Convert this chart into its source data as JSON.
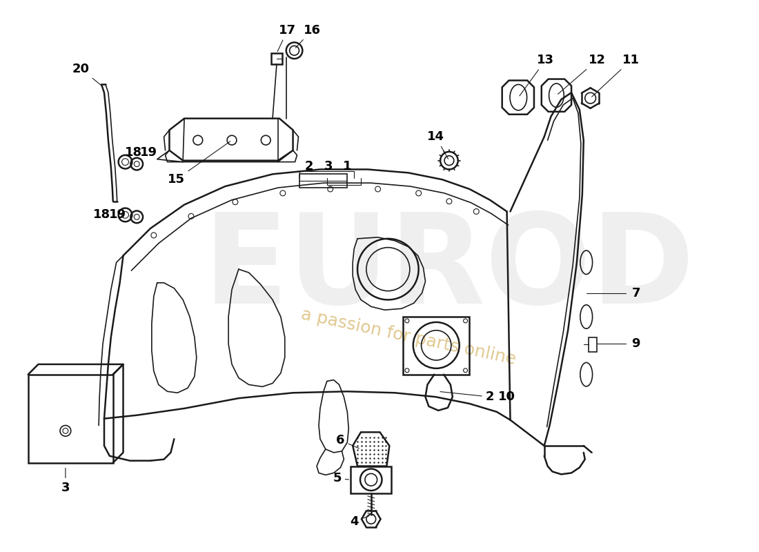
{
  "bg_color": "#ffffff",
  "line_color": "#1a1a1a",
  "watermark_color": "#d0d0d0",
  "label_color": "#000000",
  "figsize": [
    11.0,
    8.0
  ],
  "dpi": 100
}
